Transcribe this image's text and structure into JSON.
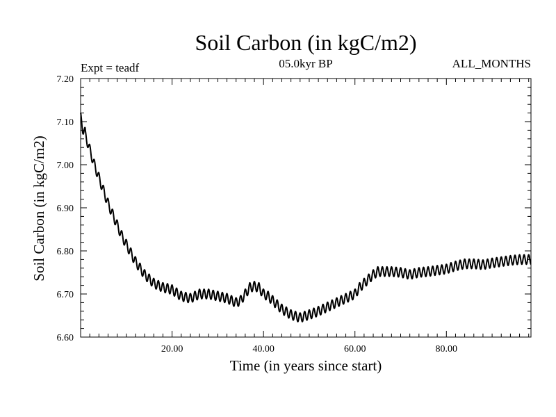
{
  "chart_data": {
    "type": "line",
    "title": "Soil Carbon (in kgC/m2)",
    "subtitle": "05.0kyr BP",
    "experiment_label": "Expt = teadf",
    "months_label": "ALL_MONTHS",
    "xlabel": "Time (in years since start)",
    "ylabel": "Soil Carbon (in kgC/m2)",
    "xlim": [
      0,
      98.5
    ],
    "ylim": [
      6.6,
      7.2
    ],
    "x_ticks": [
      20,
      40,
      60,
      80
    ],
    "x_tick_labels": [
      "20.00",
      "40.00",
      "60.00",
      "80.00"
    ],
    "y_ticks": [
      6.6,
      6.7,
      6.8,
      6.9,
      7.0,
      7.1,
      7.2
    ],
    "y_tick_labels": [
      "6.60",
      "6.70",
      "6.80",
      "6.90",
      "7.00",
      "7.10",
      "7.20"
    ],
    "series": [
      {
        "name": "Soil Carbon",
        "annual_cycle_amplitude": 0.011,
        "trend_points": [
          [
            0.0,
            7.105
          ],
          [
            1,
            7.07
          ],
          [
            2,
            7.035
          ],
          [
            3,
            7.0
          ],
          [
            4,
            6.97
          ],
          [
            5,
            6.94
          ],
          [
            6,
            6.91
          ],
          [
            7,
            6.885
          ],
          [
            8,
            6.86
          ],
          [
            9,
            6.835
          ],
          [
            10,
            6.815
          ],
          [
            11,
            6.795
          ],
          [
            12,
            6.775
          ],
          [
            13,
            6.76
          ],
          [
            14,
            6.745
          ],
          [
            15,
            6.735
          ],
          [
            16,
            6.725
          ],
          [
            17,
            6.72
          ],
          [
            18,
            6.715
          ],
          [
            19,
            6.713
          ],
          [
            20,
            6.71
          ],
          [
            22,
            6.695
          ],
          [
            24,
            6.69
          ],
          [
            26,
            6.7
          ],
          [
            28,
            6.7
          ],
          [
            30,
            6.695
          ],
          [
            32,
            6.69
          ],
          [
            34,
            6.68
          ],
          [
            35,
            6.685
          ],
          [
            36,
            6.7
          ],
          [
            37,
            6.715
          ],
          [
            38,
            6.718
          ],
          [
            39,
            6.715
          ],
          [
            40,
            6.7
          ],
          [
            41,
            6.695
          ],
          [
            42,
            6.685
          ],
          [
            43,
            6.675
          ],
          [
            44,
            6.665
          ],
          [
            46,
            6.652
          ],
          [
            48,
            6.645
          ],
          [
            50,
            6.652
          ],
          [
            52,
            6.66
          ],
          [
            54,
            6.67
          ],
          [
            56,
            6.68
          ],
          [
            58,
            6.69
          ],
          [
            60,
            6.7
          ],
          [
            61,
            6.715
          ],
          [
            62,
            6.725
          ],
          [
            63,
            6.735
          ],
          [
            64,
            6.745
          ],
          [
            65,
            6.752
          ],
          [
            66,
            6.752
          ],
          [
            68,
            6.752
          ],
          [
            70,
            6.75
          ],
          [
            72,
            6.745
          ],
          [
            74,
            6.75
          ],
          [
            76,
            6.752
          ],
          [
            78,
            6.755
          ],
          [
            80,
            6.758
          ],
          [
            82,
            6.765
          ],
          [
            84,
            6.77
          ],
          [
            86,
            6.77
          ],
          [
            88,
            6.768
          ],
          [
            90,
            6.772
          ],
          [
            92,
            6.775
          ],
          [
            94,
            6.778
          ],
          [
            96,
            6.78
          ],
          [
            98.5,
            6.78
          ]
        ]
      }
    ]
  }
}
